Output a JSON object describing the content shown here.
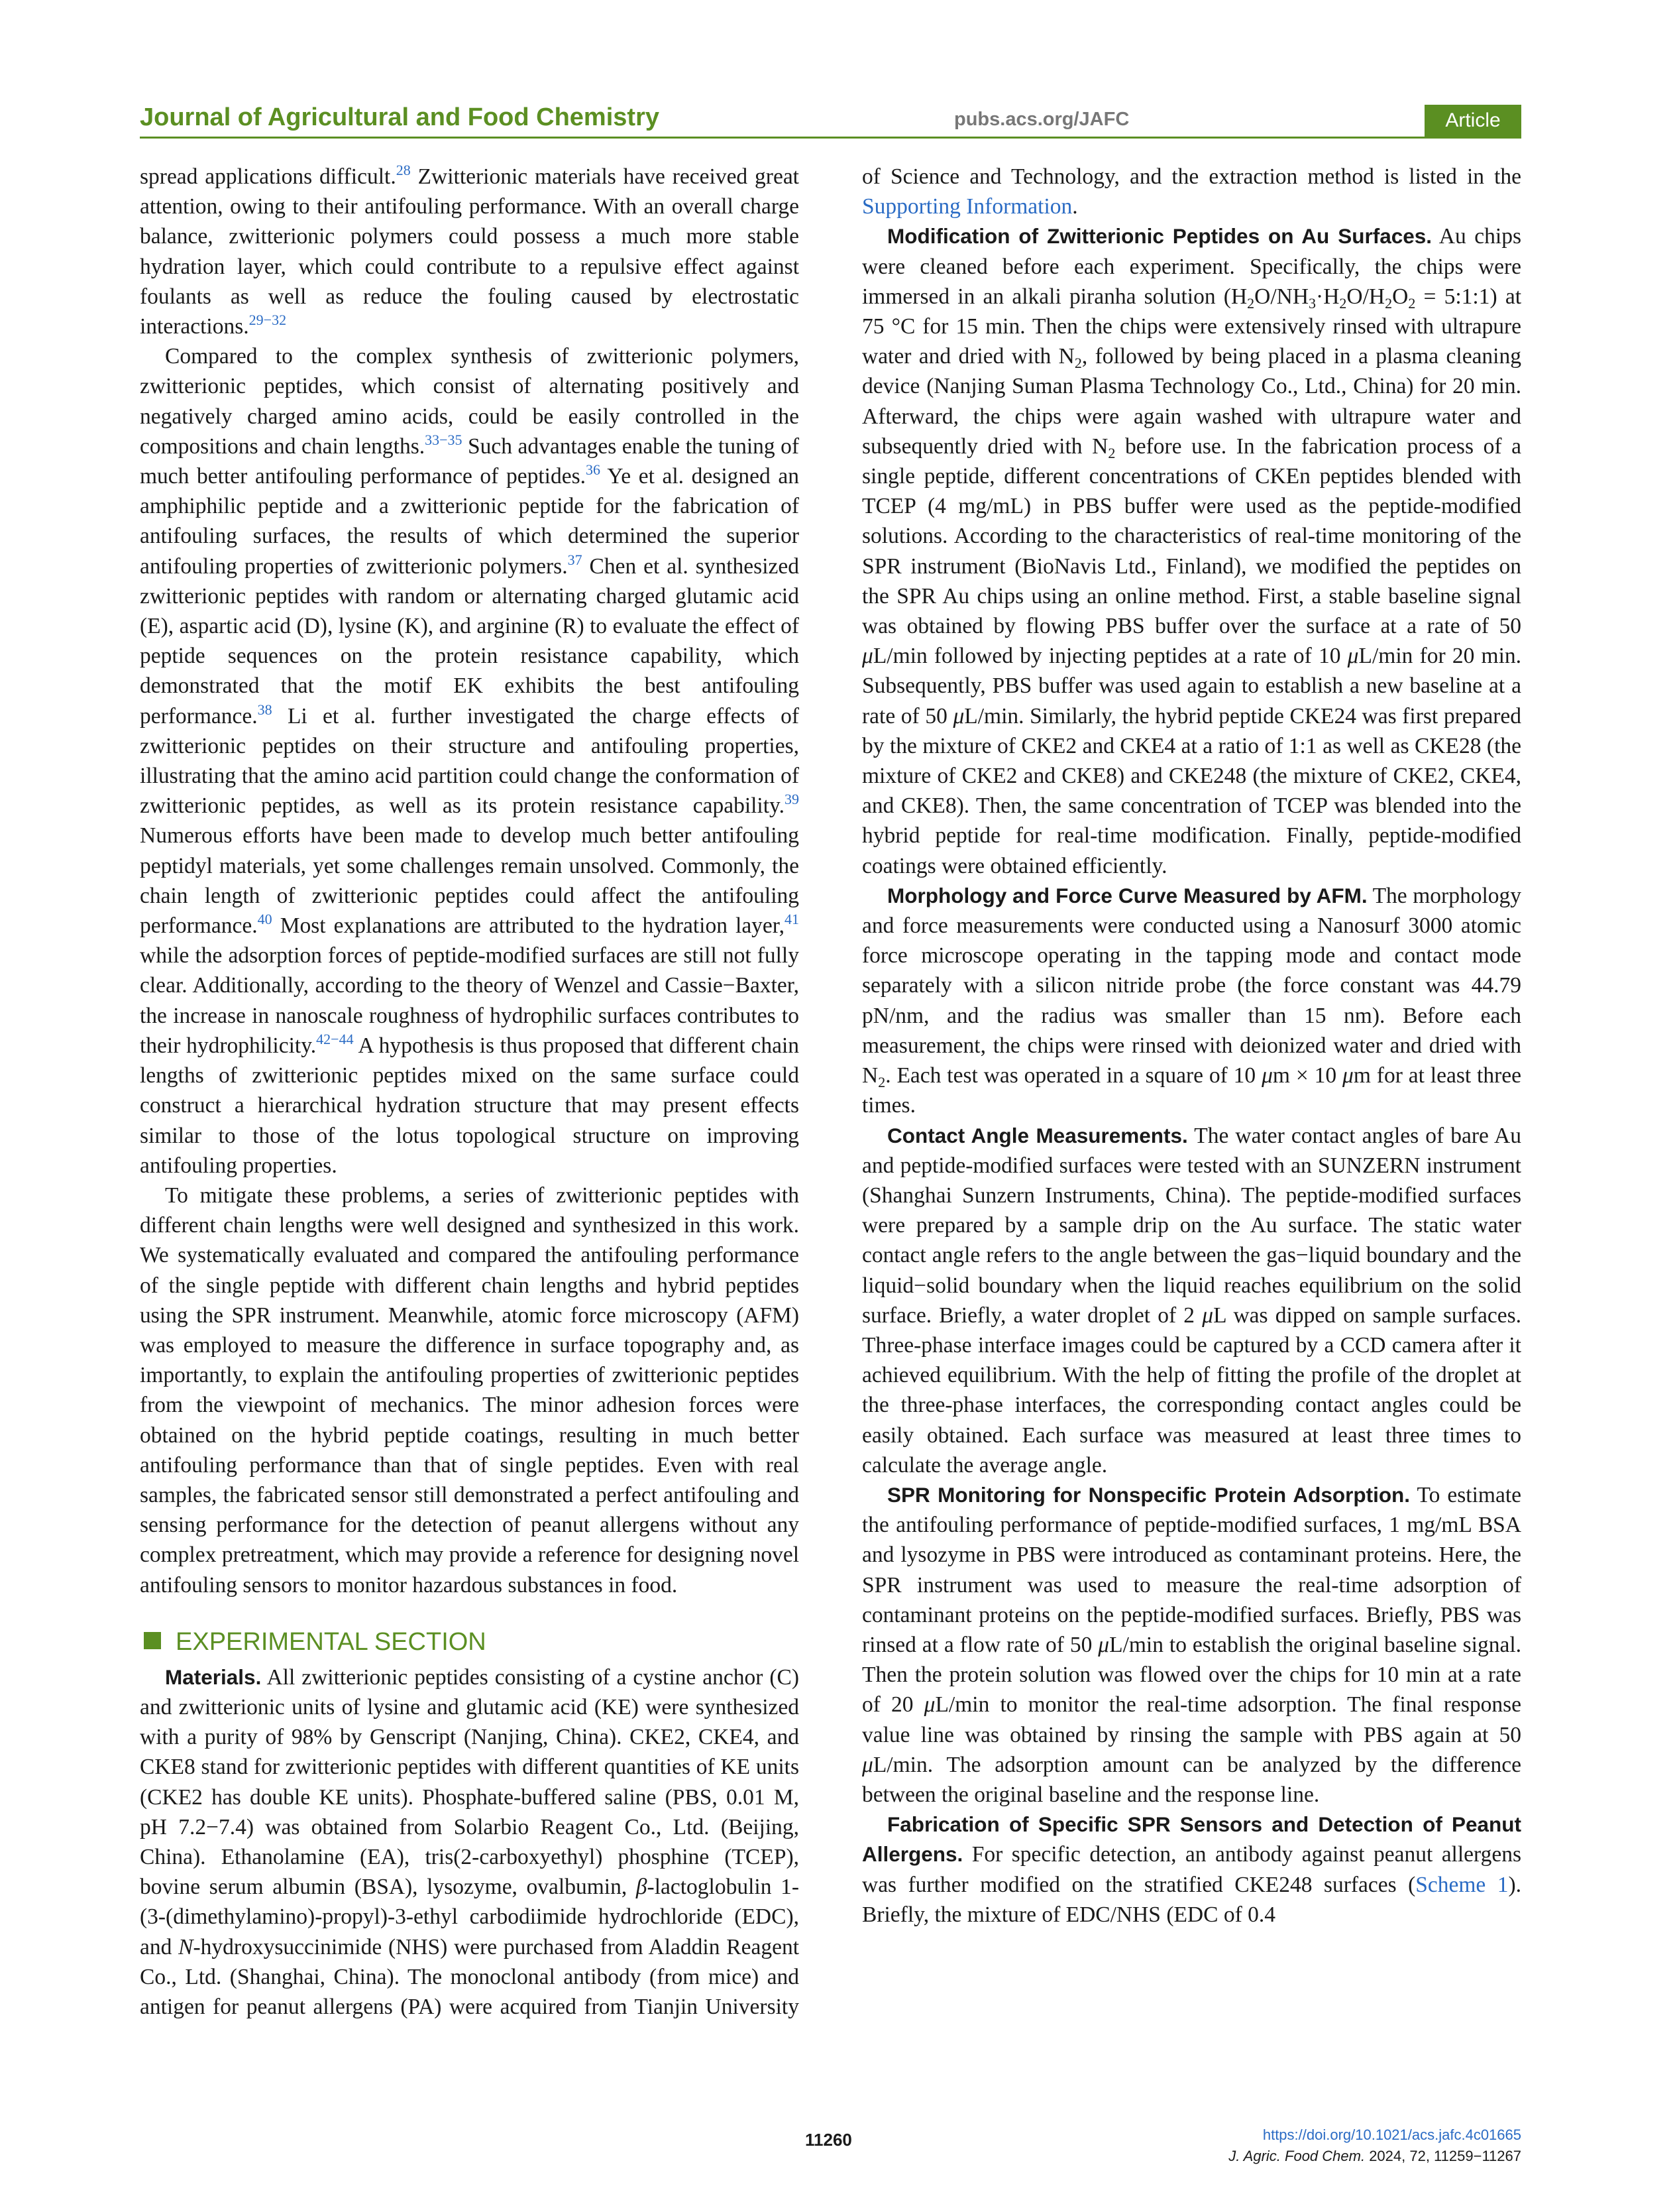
{
  "header": {
    "journal": "Journal of Agricultural and Food Chemistry",
    "url": "pubs.acs.org/JAFC",
    "badge": "Article"
  },
  "body": [
    {
      "kind": "paragraph",
      "indent": false,
      "segments": [
        "spread applications difficult.",
        {
          "text": "28",
          "style": "sup"
        },
        " Zwitterionic materials have received great attention, owing to their antifouling performance. With an overall charge balance, zwitterionic polymers could possess a much more stable hydration layer, which could contribute to a repulsive effect against foulants as well as reduce the fouling caused by electrostatic interactions.",
        {
          "text": "29−32",
          "style": "sup"
        }
      ]
    },
    {
      "kind": "paragraph",
      "indent": true,
      "segments": [
        "Compared to the complex synthesis of zwitterionic polymers, zwitterionic peptides, which consist of alternating positively and negatively charged amino acids, could be easily controlled in the compositions and chain lengths.",
        {
          "text": "33−35",
          "style": "sup"
        },
        " Such advantages enable the tuning of much better antifouling performance of peptides.",
        {
          "text": "36",
          "style": "sup"
        },
        " Ye et al. designed an amphiphilic peptide and a zwitterionic peptide for the fabrication of antifouling surfaces, the results of which determined the superior antifouling properties of zwitterionic polymers.",
        {
          "text": "37",
          "style": "sup"
        },
        " Chen et al. synthesized zwitterionic peptides with random or alternating charged glutamic acid (E), aspartic acid (D), lysine (K), and arginine (R) to evaluate the effect of peptide sequences on the protein resistance capability, which demonstrated that the motif EK exhibits the best antifouling performance.",
        {
          "text": "38",
          "style": "sup"
        },
        " Li et al. further investigated the charge effects of zwitterionic peptides on their structure and antifouling properties, illustrating that the amino acid partition could change the conformation of zwitterionic peptides, as well as its protein resistance capability.",
        {
          "text": "39",
          "style": "sup"
        },
        " Numerous efforts have been made to develop much better antifouling peptidyl materials, yet some challenges remain unsolved. Commonly, the chain length of zwitterionic peptides could affect the antifouling performance.",
        {
          "text": "40",
          "style": "sup"
        },
        " Most explanations are attributed to the hydration layer,",
        {
          "text": "41",
          "style": "sup"
        },
        " while the adsorption forces of peptide-modified surfaces are still not fully clear. Additionally, according to the theory of Wenzel and Cassie−Baxter, the increase in nanoscale roughness of hydrophilic surfaces contributes to their hydrophilicity.",
        {
          "text": "42−44",
          "style": "sup"
        },
        " A hypothesis is thus proposed that different chain lengths of zwitterionic peptides mixed on the same surface could construct a hierarchical hydration structure that may present effects similar to those of the lotus topological structure on improving antifouling properties."
      ]
    },
    {
      "kind": "paragraph",
      "indent": true,
      "segments": [
        "To mitigate these problems, a series of zwitterionic peptides with different chain lengths were well designed and synthesized in this work. We systematically evaluated and compared the antifouling performance of the single peptide with different chain lengths and hybrid peptides using the SPR instrument. Meanwhile, atomic force microscopy (AFM) was employed to measure the difference in surface topography and, as importantly, to explain the antifouling properties of zwitterionic peptides from the viewpoint of mechanics. The minor adhesion forces were obtained on the hybrid peptide coatings, resulting in much better antifouling performance than that of single peptides. Even with real samples, the fabricated sensor still demonstrated a perfect antifouling and sensing performance for the detection of peanut allergens without any complex pretreatment, which may provide a reference for designing novel antifouling sensors to monitor hazardous substances in food."
      ]
    },
    {
      "kind": "heading",
      "text": "EXPERIMENTAL SECTION"
    },
    {
      "kind": "paragraph",
      "indent": true,
      "segments": [
        {
          "text": "Materials.",
          "style": "b"
        },
        " All zwitterionic peptides consisting of a cystine anchor (C) and zwitterionic units of lysine and glutamic acid (KE) were synthesized with a purity of 98% by Genscript (Nanjing, China). CKE2, CKE4, and CKE8 stand for zwitterionic peptides with different quantities of KE units (CKE2 has double KE units). Phosphate-buffered saline (PBS, 0.01 M, pH 7.2−7.4) was obtained from Solarbio Reagent Co., Ltd. (Beijing, China). Ethanolamine (EA), tris(2-carboxyethyl) phosphine (TCEP), bovine serum albumin (BSA), lysozyme, ovalbumin, ",
        {
          "text": "β",
          "style": "it"
        },
        "-lactoglobulin 1-(3-(dimethylamino)-propyl)-3-ethyl carbodiimide hydrochloride (EDC), and ",
        {
          "text": "N",
          "style": "it"
        },
        "-hydroxysuccinimide (NHS) were purchased from Aladdin Reagent Co., Ltd. (Shanghai, China). The monoclonal antibody (from mice) and antigen for peanut allergens (PA) were acquired from Tianjin University of Science and Technology, and the extraction method is listed in the ",
        {
          "text": "Supporting Information",
          "style": "link"
        },
        "."
      ]
    },
    {
      "kind": "paragraph",
      "indent": true,
      "segments": [
        {
          "text": "Modification of Zwitterionic Peptides on Au Surfaces.",
          "style": "b"
        },
        " Au chips were cleaned before each experiment. Specifically, the chips were immersed in an alkali piranha solution (H",
        {
          "text": "2",
          "style": "sub"
        },
        "O/NH",
        {
          "text": "3",
          "style": "sub"
        },
        "·H",
        {
          "text": "2",
          "style": "sub"
        },
        "O/H",
        {
          "text": "2",
          "style": "sub"
        },
        "O",
        {
          "text": "2",
          "style": "sub"
        },
        " = 5:1:1) at 75 °C for 15 min. Then the chips were extensively rinsed with ultrapure water and dried with N",
        {
          "text": "2",
          "style": "sub"
        },
        ", followed by being placed in a plasma cleaning device (Nanjing Suman Plasma Technology Co., Ltd., China) for 20 min. Afterward, the chips were again washed with ultrapure water and subsequently dried with N",
        {
          "text": "2",
          "style": "sub"
        },
        " before use. In the fabrication process of a single peptide, different concentrations of CKEn peptides blended with TCEP (4 mg/mL) in PBS buffer were used as the peptide-modified solutions. According to the characteristics of real-time monitoring of the SPR instrument (BioNavis Ltd., Finland), we modified the peptides on the SPR Au chips using an online method. First, a stable baseline signal was obtained by flowing PBS buffer over the surface at a rate of 50 ",
        {
          "text": "μ",
          "style": "it"
        },
        "L/min followed by injecting peptides at a rate of 10 ",
        {
          "text": "μ",
          "style": "it"
        },
        "L/min for 20 min. Subsequently, PBS buffer was used again to establish a new baseline at a rate of 50 ",
        {
          "text": "μ",
          "style": "it"
        },
        "L/min. Similarly, the hybrid peptide CKE24 was first prepared by the mixture of CKE2 and CKE4 at a ratio of 1:1 as well as CKE28 (the mixture of CKE2 and CKE8) and CKE248 (the mixture of CKE2, CKE4, and CKE8). Then, the same concentration of TCEP was blended into the hybrid peptide for real-time modification. Finally, peptide-modified coatings were obtained efficiently."
      ]
    },
    {
      "kind": "paragraph",
      "indent": true,
      "segments": [
        {
          "text": "Morphology and Force Curve Measured by AFM.",
          "style": "b"
        },
        " The morphology and force measurements were conducted using a Nanosurf 3000 atomic force microscope operating in the tapping mode and contact mode separately with a silicon nitride probe (the force constant was 44.79 pN/nm, and the radius was smaller than 15 nm). Before each measurement, the chips were rinsed with deionized water and dried with N",
        {
          "text": "2",
          "style": "sub"
        },
        ". Each test was operated in a square of 10 ",
        {
          "text": "μ",
          "style": "it"
        },
        "m × 10 ",
        {
          "text": "μ",
          "style": "it"
        },
        "m for at least three times."
      ]
    },
    {
      "kind": "paragraph",
      "indent": true,
      "segments": [
        {
          "text": "Contact Angle Measurements.",
          "style": "b"
        },
        " The water contact angles of bare Au and peptide-modified surfaces were tested with an SUNZERN instrument (Shanghai Sunzern Instruments, China). The peptide-modified surfaces were prepared by a sample drip on the Au surface. The static water contact angle refers to the angle between the gas−liquid boundary and the liquid−solid boundary when the liquid reaches equilibrium on the solid surface. Briefly, a water droplet of 2 ",
        {
          "text": "μ",
          "style": "it"
        },
        "L was dipped on sample surfaces. Three-phase interface images could be captured by a CCD camera after it achieved equilibrium. With the help of fitting the profile of the droplet at the three-phase interfaces, the corresponding contact angles could be easily obtained. Each surface was measured at least three times to calculate the average angle."
      ]
    },
    {
      "kind": "paragraph",
      "indent": true,
      "segments": [
        {
          "text": "SPR Monitoring for Nonspecific Protein Adsorption.",
          "style": "b"
        },
        " To estimate the antifouling performance of peptide-modified surfaces, 1 mg/mL BSA and lysozyme in PBS were introduced as contaminant proteins. Here, the SPR instrument was used to measure the real-time adsorption of contaminant proteins on the peptide-modified surfaces. Briefly, PBS was rinsed at a flow rate of 50 ",
        {
          "text": "μ",
          "style": "it"
        },
        "L/min to establish the original baseline signal. Then the protein solution was flowed over the chips for 10 min at a rate of 20 ",
        {
          "text": "μ",
          "style": "it"
        },
        "L/min to monitor the real-time adsorption. The final response value line was obtained by rinsing the sample with PBS again at 50 ",
        {
          "text": "μ",
          "style": "it"
        },
        "L/min. The adsorption amount can be analyzed by the difference between the original baseline and the response line."
      ]
    },
    {
      "kind": "paragraph",
      "indent": true,
      "segments": [
        {
          "text": "Fabrication of Specific SPR Sensors and Detection of Peanut Allergens.",
          "style": "b"
        },
        " For specific detection, an antibody against peanut allergens was further modified on the stratified CKE248 surfaces (",
        {
          "text": "Scheme 1",
          "style": "link"
        },
        "). Briefly, the mixture of EDC/NHS (EDC of 0.4"
      ]
    }
  ],
  "footer": {
    "page": "11260",
    "doi": "https://doi.org/10.1021/acs.jafc.4c01665",
    "citation": [
      {
        "text": "J. Agric. Food Chem.",
        "style": "it"
      },
      " 2024, 72, 11259−11267"
    ]
  }
}
